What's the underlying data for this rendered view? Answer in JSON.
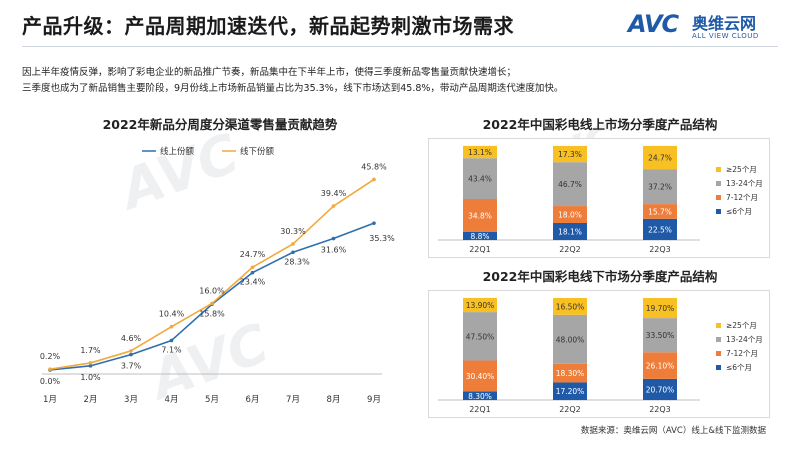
{
  "header": {
    "title": "产品升级：产品周期加速迭代，新品起势刺激市场需求",
    "logo_text": "AVC",
    "logo_cn": "奥维云网",
    "logo_en": "ALL VIEW CLOUD"
  },
  "intro": {
    "line1": "因上半年疫情反弹，影响了彩电企业的新品推广节奏，新品集中在下半年上市，使得三季度新品零售量贡献快速增长；",
    "line2": "三季度也成为了新品销售主要阶段，9月份线上市场新品销量占比为35.3%，线下市场达到45.8%，带动产品周期迭代速度加快。"
  },
  "source": "数据来源：奥维云网（AVC）线上&线下监测数据",
  "colors": {
    "online": "#2e6fb0",
    "offline": "#f2a93b",
    "lt6": "#1f5aa8",
    "m7_12": "#ee7d3a",
    "m13_24": "#a6a6a6",
    "ge25": "#f8c022"
  },
  "chart_data": [
    {
      "type": "line",
      "title": "2022年新品分周度分渠道零售量贡献趋势",
      "categories": [
        "1月",
        "2月",
        "3月",
        "4月",
        "5月",
        "6月",
        "7月",
        "8月",
        "9月"
      ],
      "series": [
        {
          "name": "线上份额",
          "values": [
            0.0,
            1.0,
            3.7,
            7.1,
            15.8,
            23.4,
            28.3,
            31.6,
            35.3
          ],
          "labels": [
            "0.0%",
            "1.0%",
            "3.7%",
            "7.1%",
            "15.8%",
            "23.4%",
            "28.3%",
            "31.6%",
            "35.3%"
          ]
        },
        {
          "name": "线下份额",
          "values": [
            0.2,
            1.7,
            4.6,
            10.4,
            16.0,
            24.7,
            30.3,
            39.4,
            45.8
          ],
          "labels": [
            "0.2%",
            "1.7%",
            "4.6%",
            "10.4%",
            "16.0%",
            "24.7%",
            "30.3%",
            "39.4%",
            "45.8%"
          ]
        }
      ],
      "ylim": [
        0,
        50
      ],
      "legend": "top-left",
      "grid": false
    },
    {
      "type": "bar",
      "stacked": true,
      "title": "2022年中国彩电线上市场分季度产品结构",
      "categories": [
        "22Q1",
        "22Q2",
        "22Q3"
      ],
      "series": [
        {
          "name": "≤6个月",
          "values": [
            8.8,
            18.1,
            22.5
          ],
          "labels": [
            "8.8%",
            "18.1%",
            "22.5%"
          ]
        },
        {
          "name": "7-12个月",
          "values": [
            34.8,
            18.0,
            15.7
          ],
          "labels": [
            "34.8%",
            "18.0%",
            "15.7%"
          ]
        },
        {
          "name": "13-24个月",
          "values": [
            43.4,
            46.7,
            37.2
          ],
          "labels": [
            "43.4%",
            "46.7%",
            "37.2%"
          ]
        },
        {
          "name": "≥25个月",
          "values": [
            13.1,
            17.3,
            24.7
          ],
          "labels": [
            "13.1%",
            "17.3%",
            "24.7%"
          ]
        }
      ],
      "ylim": [
        0,
        100
      ],
      "legend": "right"
    },
    {
      "type": "bar",
      "stacked": true,
      "title": "2022年中国彩电线下市场分季度产品结构",
      "categories": [
        "22Q1",
        "22Q2",
        "22Q3"
      ],
      "series": [
        {
          "name": "≤6个月",
          "values": [
            8.3,
            17.2,
            20.7
          ],
          "labels": [
            "8.30%",
            "17.20%",
            "20.70%"
          ]
        },
        {
          "name": "7-12个月",
          "values": [
            30.4,
            18.3,
            26.1
          ],
          "labels": [
            "30.40%",
            "18.30%",
            "26.10%"
          ]
        },
        {
          "name": "13-24个月",
          "values": [
            47.5,
            48.0,
            33.5
          ],
          "labels": [
            "47.50%",
            "48.00%",
            "33.50%"
          ]
        },
        {
          "name": "≥25个月",
          "values": [
            13.9,
            16.5,
            19.7
          ],
          "labels": [
            "13.90%",
            "16.50%",
            "19.70%"
          ]
        }
      ],
      "ylim": [
        0,
        100
      ],
      "legend": "right"
    }
  ]
}
